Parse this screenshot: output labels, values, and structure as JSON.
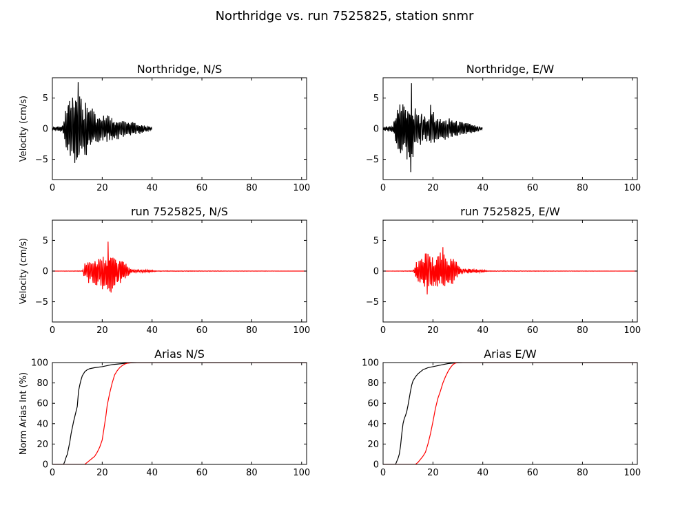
{
  "figure_title": "Northridge vs. run 7525825, station snmr",
  "colors": {
    "recorded": "#000000",
    "simulated": "#ff0000",
    "axes": "#000000",
    "background": "#ffffff"
  },
  "chart_data": [
    {
      "type": "line",
      "title": "Northridge, N/S",
      "xlabel": "",
      "ylabel": "Velocity (cm/s)",
      "xlim": [
        0,
        102
      ],
      "ylim": [
        -8.3,
        8.3
      ],
      "xticks": [
        "0",
        "20",
        "40",
        "60",
        "80",
        "100"
      ],
      "yticks": [
        "−5",
        "0",
        "5"
      ],
      "series": [
        {
          "color": "#000000",
          "envelope": {
            "x": [
              0,
              4,
              5,
              6,
              7,
              8,
              9,
              10,
              11,
              12,
              13,
              14,
              15,
              16,
              17,
              18,
              20,
              22,
              24,
              26,
              28,
              30,
              32,
              34,
              36,
              38,
              40
            ],
            "y": [
              0.3,
              0.6,
              3.0,
              4.5,
              5.5,
              5.8,
              6.0,
              7.5,
              6.0,
              5.5,
              5.0,
              4.5,
              4.0,
              3.5,
              2.5,
              2.4,
              2.3,
              2.5,
              2.2,
              1.9,
              1.7,
              1.5,
              1.2,
              1.0,
              0.8,
              0.5,
              0.2
            ]
          },
          "peak_max": 7.6,
          "peak_min": -5.6
        }
      ]
    },
    {
      "type": "line",
      "title": "Northridge, E/W",
      "xlabel": "",
      "ylabel": "",
      "xlim": [
        0,
        102
      ],
      "ylim": [
        -8.3,
        8.3
      ],
      "xticks": [
        "0",
        "20",
        "40",
        "60",
        "80",
        "100"
      ],
      "yticks": [
        "−5",
        "0",
        "5"
      ],
      "series": [
        {
          "color": "#000000",
          "envelope": {
            "x": [
              0,
              4,
              5,
              6,
              7,
              8,
              9,
              10,
              11,
              12,
              13,
              14,
              15,
              16,
              18,
              19,
              20,
              22,
              24,
              26,
              28,
              30,
              32,
              34,
              36,
              38,
              40
            ],
            "y": [
              0.3,
              0.6,
              2.5,
              3.5,
              5.0,
              5.2,
              5.0,
              6.0,
              7.4,
              5.0,
              3.5,
              3.0,
              2.8,
              2.6,
              2.3,
              4.5,
              3.0,
              2.0,
              2.2,
              1.9,
              1.6,
              1.4,
              1.2,
              1.0,
              0.8,
              0.5,
              0.2
            ]
          },
          "peak_max": 7.4,
          "peak_min": -7.1
        }
      ]
    },
    {
      "type": "line",
      "title": "run 7525825, N/S",
      "xlabel": "",
      "ylabel": "Velocity (cm/s)",
      "xlim": [
        0,
        102
      ],
      "ylim": [
        -8.3,
        8.3
      ],
      "xticks": [
        "0",
        "20",
        "40",
        "60",
        "80",
        "100"
      ],
      "yticks": [
        "−5",
        "0",
        "5"
      ],
      "series": [
        {
          "color": "#ff0000",
          "envelope": {
            "x": [
              0,
              12,
              13,
              14,
              16,
              18,
              20,
              22,
              23,
              24,
              26,
              28,
              30,
              31,
              32,
              34,
              36,
              38,
              40,
              42,
              102
            ],
            "y": [
              0.0,
              0.05,
              1.5,
              2.0,
              2.2,
              2.5,
              3.0,
              3.4,
              4.8,
              3.8,
              2.5,
              1.9,
              1.1,
              0.6,
              0.3,
              0.25,
              0.25,
              0.2,
              0.15,
              0.05,
              0.0
            ]
          },
          "peak_max": 4.8,
          "peak_min": -3.5
        }
      ]
    },
    {
      "type": "line",
      "title": "run 7525825, E/W",
      "xlabel": "",
      "ylabel": "",
      "xlim": [
        0,
        102
      ],
      "ylim": [
        -8.3,
        8.3
      ],
      "xticks": [
        "0",
        "20",
        "40",
        "60",
        "80",
        "100"
      ],
      "yticks": [
        "−5",
        "0",
        "5"
      ],
      "series": [
        {
          "color": "#ff0000",
          "envelope": {
            "x": [
              0,
              12,
              13,
              14,
              16,
              18,
              20,
              22,
              24,
              26,
              28,
              30,
              31,
              32,
              34,
              36,
              38,
              40,
              42,
              102
            ],
            "y": [
              0.0,
              0.05,
              1.2,
              2.0,
              2.5,
              3.9,
              3.0,
              3.0,
              3.5,
              2.6,
              2.5,
              1.5,
              0.6,
              0.4,
              0.35,
              0.3,
              0.3,
              0.2,
              0.05,
              0.0
            ]
          },
          "peak_max": 3.9,
          "peak_min": -3.8
        }
      ]
    },
    {
      "type": "line",
      "title": "Arias N/S",
      "xlabel": "",
      "ylabel": "Norm Arias Int (%)",
      "xlim": [
        0,
        102
      ],
      "ylim": [
        0,
        100
      ],
      "xticks": [
        "0",
        "20",
        "40",
        "60",
        "80",
        "100"
      ],
      "yticks": [
        "0",
        "20",
        "40",
        "60",
        "80",
        "100"
      ],
      "series": [
        {
          "color": "#000000",
          "x": [
            0,
            4.5,
            5,
            5.5,
            6,
            6.5,
            7,
            7.5,
            8,
            8.5,
            9,
            9.5,
            10,
            10.5,
            11,
            11.5,
            12,
            12.5,
            13,
            14,
            15,
            17,
            20,
            22,
            24,
            26,
            28,
            30,
            32,
            34,
            102
          ],
          "y": [
            0,
            0,
            3,
            7,
            10,
            16,
            22,
            30,
            36,
            42,
            47,
            52,
            57,
            72,
            78,
            83,
            87,
            89,
            91,
            93,
            94,
            95,
            96,
            97,
            98,
            98.5,
            99,
            99.5,
            99.8,
            100,
            100
          ]
        },
        {
          "color": "#ff0000",
          "x": [
            0,
            13,
            14,
            15,
            16,
            17,
            18,
            19,
            20,
            20.5,
            21,
            21.5,
            22,
            22.5,
            23,
            23.5,
            24,
            24.5,
            25,
            26,
            27,
            28,
            29,
            30,
            31,
            32,
            102
          ],
          "y": [
            0,
            0,
            2,
            4,
            6,
            8,
            12,
            17,
            24,
            32,
            40,
            48,
            58,
            64,
            70,
            75,
            80,
            84,
            88,
            92,
            95,
            97,
            98.5,
            99.3,
            99.7,
            100,
            100
          ]
        }
      ]
    },
    {
      "type": "line",
      "title": "Arias E/W",
      "xlabel": "",
      "ylabel": "",
      "xlim": [
        0,
        102
      ],
      "ylim": [
        0,
        100
      ],
      "xticks": [
        "0",
        "20",
        "40",
        "60",
        "80",
        "100"
      ],
      "yticks": [
        "0",
        "20",
        "40",
        "60",
        "80",
        "100"
      ],
      "series": [
        {
          "color": "#000000",
          "x": [
            0,
            5,
            5.5,
            6,
            6.5,
            7,
            7.5,
            8,
            8.5,
            9,
            9.5,
            10,
            10.5,
            11,
            11.5,
            12,
            13,
            14,
            15,
            16,
            18,
            20,
            22,
            24,
            26,
            28,
            30,
            32,
            102
          ],
          "y": [
            0,
            0,
            3,
            6,
            10,
            18,
            30,
            40,
            45,
            48,
            52,
            58,
            65,
            72,
            78,
            82,
            86,
            89,
            91,
            93,
            95,
            96,
            97,
            98,
            99,
            99.5,
            99.8,
            100,
            100
          ]
        },
        {
          "color": "#ff0000",
          "x": [
            0,
            13,
            14,
            15,
            16,
            17,
            18,
            19,
            20,
            21,
            22,
            23,
            24,
            25,
            26,
            27,
            28,
            29,
            30,
            102
          ],
          "y": [
            0,
            0,
            2,
            5,
            8,
            12,
            20,
            30,
            42,
            55,
            65,
            72,
            80,
            86,
            91,
            95,
            98,
            99.5,
            100,
            100
          ]
        }
      ]
    }
  ]
}
